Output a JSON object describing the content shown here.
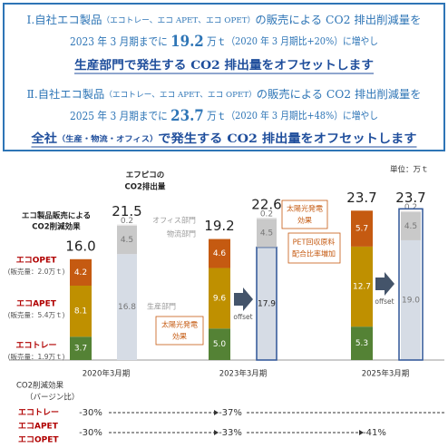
{
  "header": {
    "blocks": [
      {
        "lines": [
          [
            "Ⅰ.自社エコ製品",
            "（エコトレー、エコ APET、エコ OPET）",
            "の販売による CO2 排出削減量を"
          ],
          [
            "2023 年 3 月期までに ",
            "19.2",
            " 万ｔ",
            "（2020 年 3 月期比+20%）に増やし"
          ],
          [
            "生産部門で発生する CO2 排出量をオフセットします"
          ]
        ]
      },
      {
        "lines": [
          [
            "Ⅱ.自社エコ製品",
            "（エコトレー、エコ APET、エコ OPET）",
            "の販売による CO2 排出削減量を"
          ],
          [
            "2025 年 3 月期までに ",
            "23.7",
            " 万ｔ",
            "（2020 年 3 月期比+48%）に増やし"
          ],
          [
            "全社",
            "（生産・物流・オフィス）",
            "で発生する CO2 排出量をオフセットします"
          ]
        ]
      }
    ]
  },
  "chart_data": {
    "type": "stacked_bar",
    "unit": "単位：万ｔ",
    "categories": [
      "2020年3月期",
      "2023年3月期",
      "2025年3月期"
    ],
    "groups": [
      {
        "label": [
          "エコ製品販売による",
          "CO2削減効果"
        ],
        "totals": [
          16,
          19.2,
          23.7
        ],
        "total_labels": [
          "16.0",
          "19.2",
          "23.7"
        ],
        "series": [
          {
            "name": "エコトレー",
            "note": "(販売量：1.9万ｔ)",
            "color": "#548235",
            "values": [
              3.7,
              5,
              5.3
            ],
            "value_labels": [
              "3.7",
              "5.0",
              "5.3"
            ]
          },
          {
            "name": "エコAPET",
            "note": "(販売量：5.4万ｔ)",
            "color": "#bf9000",
            "values": [
              8.1,
              9.6,
              12.7
            ],
            "value_labels": [
              "8.1",
              "9.6",
              "12.7"
            ]
          },
          {
            "name": "エコOPET",
            "note": "(販売量：2.0万ｔ)",
            "color": "#c55a11",
            "values": [
              4.2,
              4.6,
              5.7
            ],
            "value_labels": [
              "4.2",
              "4.6",
              "5.7"
            ]
          }
        ]
      },
      {
        "label": [
          "エフピコの",
          "CO2排出量"
        ],
        "totals": [
          21.5,
          22.6,
          23.7
        ],
        "total_labels": [
          "21.5",
          "22.6",
          "23.7"
        ],
        "outline_color": "#2f5597",
        "outlined": [
          false,
          false,
          true
        ],
        "series": [
          {
            "name": "生産部門",
            "color": "#d6dce5",
            "values": [
              16.8,
              17.9,
              19
            ],
            "value_labels": [
              "16.8",
              "17.9",
              "19.0"
            ],
            "outlined": [
              false,
              true,
              false
            ]
          },
          {
            "name": "物流部門",
            "color": "#c9c9c9",
            "values": [
              4.5,
              4.5,
              4.5
            ],
            "value_labels": [
              "4.5",
              "4.5",
              "4.5"
            ]
          },
          {
            "name": "オフィス部門",
            "color": "#e7e6e6",
            "values": [
              0.2,
              0.2,
              0.2
            ],
            "value_labels": [
              "0.2",
              "0.2",
              "0.2"
            ]
          }
        ]
      }
    ],
    "annotations": [
      [
        "太陽光発電",
        "効果"
      ],
      [
        "太陽光発電",
        "効果"
      ],
      [
        "PET回収原料",
        "配合比率増加"
      ],
      [
        "offset"
      ],
      [
        "offset"
      ]
    ]
  },
  "reduction": {
    "title": "CO2削減効果",
    "subtitle": "（バージン比）",
    "rows": [
      {
        "labels": [
          "エコトレー"
        ],
        "values": [
          "-30%",
          "-37%"
        ]
      },
      {
        "labels": [
          "エコAPET",
          "エコOPET"
        ],
        "values": [
          "-30%",
          "-33%",
          "-41%"
        ]
      }
    ]
  }
}
